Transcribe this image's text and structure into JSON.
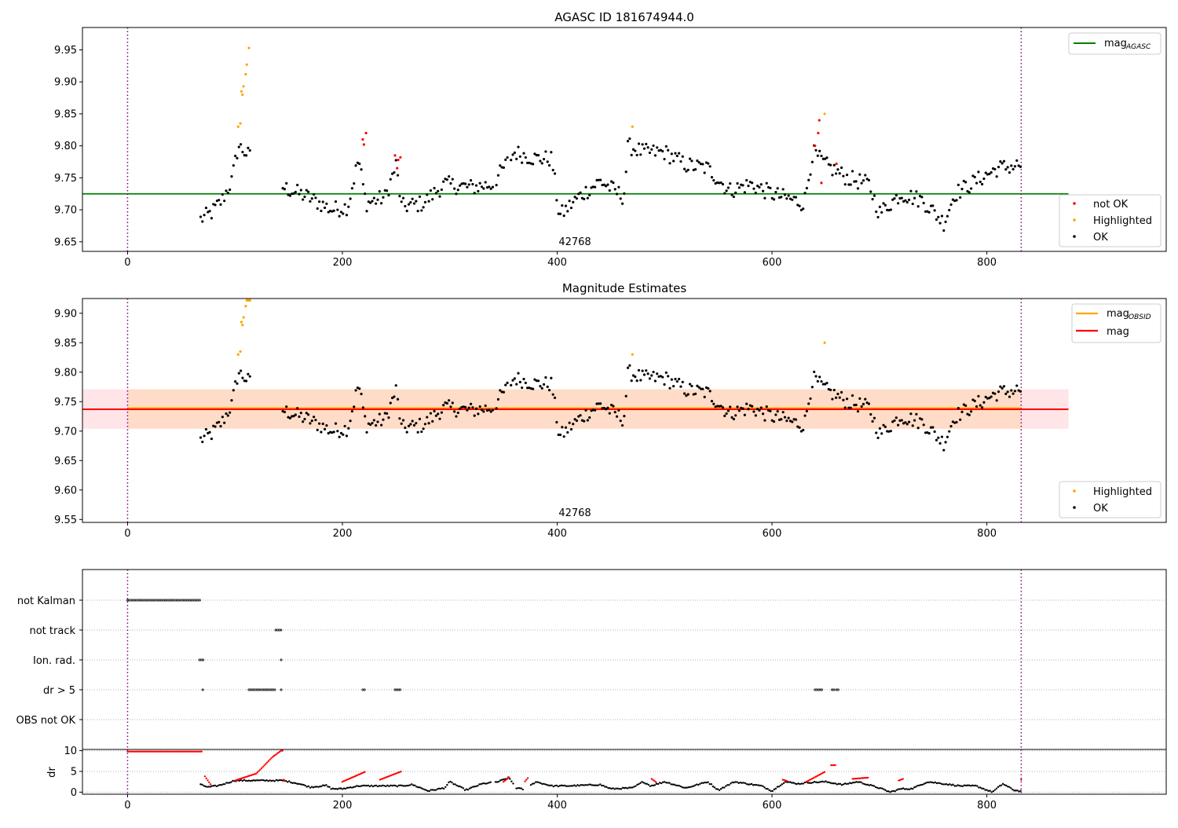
{
  "colors": {
    "ok": "#000000",
    "not_ok": "#ff0000",
    "highlighted": "#ffa500",
    "mag_agasc": "#008000",
    "mag_obsid": "#ffa500",
    "mag": "#ff0000",
    "obs_boundary": "#800080",
    "band_outer": "#ffe4e8",
    "band_inner": "#ffdcc8",
    "grid": "#b0b0b0"
  },
  "chart_data": [
    {
      "type": "scatter",
      "title": "AGASC ID 181674944.0",
      "xlim": [
        -42,
        967
      ],
      "ylim": [
        9.635,
        9.985
      ],
      "xticks": [
        "0",
        "200",
        "400",
        "600",
        "800"
      ],
      "yticks": [
        "9.65",
        "9.70",
        "9.75",
        "9.80",
        "9.85",
        "9.90",
        "9.95"
      ],
      "obsid_label": "42768",
      "obs_boundaries_x": [
        0,
        832
      ],
      "mag_agasc": 9.725,
      "mag_line_x": [
        -42,
        876
      ],
      "legend_top": {
        "position": "upper right",
        "entries": [
          {
            "label": "mag",
            "subscript": "AGASC",
            "color": "#008000"
          }
        ]
      },
      "legend_bottom": {
        "position": "lower right",
        "entries": [
          {
            "label": "not OK",
            "color": "#ff0000"
          },
          {
            "label": "Highlighted",
            "color": "#ffa500"
          },
          {
            "label": "OK",
            "color": "#000000"
          }
        ]
      },
      "series": [
        {
          "name": "not OK",
          "color": "#ff0000",
          "points": [
            [
              219,
              9.81
            ],
            [
              220,
              9.802
            ],
            [
              222,
              9.82
            ],
            [
              249,
              9.785
            ],
            [
              251,
              9.765
            ],
            [
              252,
              9.778
            ],
            [
              254,
              9.782
            ],
            [
              640,
              9.8
            ],
            [
              643,
              9.82
            ],
            [
              644,
              9.84
            ],
            [
              646,
              9.742
            ],
            [
              660,
              9.772
            ]
          ]
        },
        {
          "name": "Highlighted",
          "color": "#ffa500",
          "points": [
            [
              103,
              9.83
            ],
            [
              105,
              9.835
            ],
            [
              106,
              9.885
            ],
            [
              107,
              9.88
            ],
            [
              108,
              9.893
            ],
            [
              110,
              9.912
            ],
            [
              111,
              9.927
            ],
            [
              113,
              9.953
            ],
            [
              470,
              9.83
            ],
            [
              649,
              9.85
            ]
          ]
        },
        {
          "name": "OK",
          "color": "#000000",
          "trend": [
            [
              68,
              9.685
            ],
            [
              78,
              9.695
            ],
            [
              88,
              9.715
            ],
            [
              97,
              9.745
            ],
            [
              103,
              9.8
            ],
            [
              145,
              9.735
            ],
            [
              168,
              9.72
            ],
            [
              190,
              9.7
            ],
            [
              205,
              9.705
            ],
            [
              215,
              9.78
            ],
            [
              222,
              9.71
            ],
            [
              240,
              9.72
            ],
            [
              250,
              9.77
            ],
            [
              255,
              9.705
            ],
            [
              275,
              9.71
            ],
            [
              295,
              9.74
            ],
            [
              320,
              9.735
            ],
            [
              340,
              9.74
            ],
            [
              360,
              9.79
            ],
            [
              380,
              9.78
            ],
            [
              395,
              9.78
            ],
            [
              402,
              9.69
            ],
            [
              420,
              9.72
            ],
            [
              440,
              9.745
            ],
            [
              462,
              9.72
            ],
            [
              466,
              9.8
            ],
            [
              480,
              9.79
            ],
            [
              500,
              9.79
            ],
            [
              520,
              9.77
            ],
            [
              540,
              9.765
            ],
            [
              560,
              9.73
            ],
            [
              580,
              9.74
            ],
            [
              600,
              9.725
            ],
            [
              620,
              9.715
            ],
            [
              630,
              9.71
            ],
            [
              638,
              9.79
            ],
            [
              650,
              9.77
            ],
            [
              670,
              9.75
            ],
            [
              690,
              9.74
            ],
            [
              700,
              9.695
            ],
            [
              720,
              9.725
            ],
            [
              740,
              9.715
            ],
            [
              760,
              9.68
            ],
            [
              770,
              9.725
            ],
            [
              790,
              9.745
            ],
            [
              810,
              9.765
            ],
            [
              832,
              9.77
            ]
          ],
          "spread": 0.013,
          "step": 1.7,
          "gaps": [
            [
              114,
              143
            ],
            [
              340,
              342
            ],
            [
              355,
              356
            ]
          ]
        }
      ]
    },
    {
      "type": "scatter",
      "title": "Magnitude Estimates",
      "xlim": [
        -42,
        967
      ],
      "ylim": [
        9.545,
        9.925
      ],
      "xticks": [
        "0",
        "200",
        "400",
        "600",
        "800"
      ],
      "yticks": [
        "9.55",
        "9.60",
        "9.65",
        "9.70",
        "9.75",
        "9.80",
        "9.85",
        "9.90"
      ],
      "obsid_label": "42768",
      "obs_boundaries_x": [
        0,
        832
      ],
      "mag": 9.737,
      "mag_obsid": 9.738,
      "band_outer": [
        9.704,
        9.771
      ],
      "band_inner_x": [
        0,
        832
      ],
      "mag_line_x": [
        -42,
        876
      ],
      "legend_top": {
        "position": "upper right",
        "entries": [
          {
            "label": "mag",
            "subscript": "OBSID",
            "color": "#ffa500"
          },
          {
            "label": "mag",
            "color": "#ff0000"
          }
        ]
      },
      "legend_bottom": {
        "position": "lower right",
        "entries": [
          {
            "label": "Highlighted",
            "color": "#ffa500"
          },
          {
            "label": "OK",
            "color": "#000000"
          }
        ]
      },
      "series": [
        {
          "name": "Highlighted",
          "color": "#ffa500",
          "points": [
            [
              103,
              9.83
            ],
            [
              105,
              9.835
            ],
            [
              106,
              9.885
            ],
            [
              107,
              9.88
            ],
            [
              108,
              9.893
            ],
            [
              110,
              9.912
            ],
            [
              111,
              9.922
            ],
            [
              112,
              9.922
            ],
            [
              113,
              9.922
            ],
            [
              114,
              9.922
            ],
            [
              470,
              9.83
            ],
            [
              649,
              9.85
            ]
          ]
        },
        {
          "name": "OK",
          "color": "#000000",
          "trend": "same as top panel"
        }
      ]
    },
    {
      "type": "scatter",
      "title": "",
      "xlim": [
        -42,
        967
      ],
      "obs_boundaries_x": [
        0,
        832
      ],
      "flag_rows": [
        "not Kalman",
        "not track",
        "Ion. rad.",
        "dr > 5",
        "OBS not OK"
      ],
      "flags": {
        "not Kalman": [
          [
            0,
            68
          ]
        ],
        "not track": [
          [
            138,
            143
          ]
        ],
        "Ion. rad.": [
          [
            67,
            71
          ],
          [
            143,
            144
          ]
        ],
        "dr > 5": [
          [
            70,
            71
          ],
          [
            113,
            138
          ],
          [
            143,
            144
          ],
          [
            219,
            222
          ],
          [
            249,
            254
          ],
          [
            640,
            647
          ],
          [
            656,
            658
          ],
          [
            660,
            662
          ]
        ],
        "OBS not OK": []
      }
    },
    {
      "type": "scatter",
      "ylabel": "dr",
      "xlim": [
        -42,
        967
      ],
      "ylim": [
        -0.5,
        10.3
      ],
      "xticks": [
        "0",
        "200",
        "400",
        "600",
        "800"
      ],
      "yticks": [
        "0",
        "5",
        "10"
      ],
      "obs_boundaries_x": [
        0,
        832
      ],
      "series": [
        {
          "name": "not OK",
          "color": "#ff0000",
          "segments": [
            [
              [
                0,
                9.8
              ],
              [
                70,
                9.8
              ]
            ],
            [
              [
                72,
                3.8
              ],
              [
                78,
                1.6
              ]
            ],
            [
              [
                100,
                2.8
              ],
              [
                120,
                4.5
              ],
              [
                135,
                8.5
              ],
              [
                143,
                10
              ]
            ],
            [
              [
                143,
                10
              ],
              [
                145,
                10
              ]
            ],
            [
              [
                145,
                3
              ],
              [
                147,
                2.5
              ]
            ],
            [
              [
                200,
                2.5
              ],
              [
                222,
                5
              ]
            ],
            [
              [
                235,
                3
              ],
              [
                255,
                5
              ]
            ],
            [
              [
                350,
                2.5
              ],
              [
                356,
                3.7
              ]
            ],
            [
              [
                370,
                2.6
              ],
              [
                373,
                3.5
              ]
            ],
            [
              [
                488,
                3.2
              ],
              [
                492,
                2.4
              ]
            ],
            [
              [
                610,
                3
              ],
              [
                615,
                2.6
              ]
            ],
            [
              [
                632,
                2.5
              ],
              [
                650,
                5
              ]
            ],
            [
              [
                655,
                6.5
              ],
              [
                660,
                6.5
              ]
            ],
            [
              [
                675,
                3.2
              ],
              [
                690,
                3.5
              ]
            ],
            [
              [
                718,
                2.8
              ],
              [
                722,
                3.2
              ]
            ],
            [
              [
                832,
                3
              ],
              [
                833,
                3.5
              ]
            ]
          ]
        },
        {
          "name": "OK",
          "color": "#000000",
          "curve": [
            [
              68,
              1.8
            ],
            [
              75,
              1.2
            ],
            [
              85,
              1.6
            ],
            [
              100,
              2.8
            ],
            [
              145,
              2.8
            ],
            [
              160,
              2.0
            ],
            [
              170,
              1.2
            ],
            [
              185,
              1.6
            ],
            [
              190,
              0.8
            ],
            [
              200,
              0.8
            ],
            [
              215,
              1.5
            ],
            [
              255,
              1.5
            ],
            [
              265,
              1.8
            ],
            [
              280,
              0.3
            ],
            [
              295,
              1.0
            ],
            [
              300,
              2.5
            ],
            [
              315,
              0.5
            ],
            [
              330,
              2.0
            ],
            [
              345,
              2.5
            ],
            [
              355,
              3.5
            ],
            [
              362,
              1.0
            ],
            [
              370,
              0.6
            ],
            [
              380,
              2.5
            ],
            [
              395,
              1.5
            ],
            [
              410,
              1.5
            ],
            [
              440,
              1.8
            ],
            [
              450,
              0.8
            ],
            [
              470,
              1.0
            ],
            [
              480,
              2.5
            ],
            [
              487,
              1.5
            ],
            [
              500,
              2.5
            ],
            [
              520,
              1.0
            ],
            [
              540,
              2.5
            ],
            [
              550,
              0.5
            ],
            [
              565,
              2.5
            ],
            [
              590,
              1.5
            ],
            [
              600,
              0.3
            ],
            [
              612,
              2.5
            ],
            [
              625,
              2.0
            ],
            [
              632,
              2.3
            ],
            [
              650,
              2.5
            ],
            [
              665,
              1.8
            ],
            [
              680,
              2.5
            ],
            [
              700,
              1.0
            ],
            [
              710,
              0.0
            ],
            [
              720,
              0.8
            ],
            [
              730,
              0.8
            ],
            [
              745,
              2.5
            ],
            [
              760,
              2.0
            ],
            [
              775,
              1.5
            ],
            [
              790,
              1.5
            ],
            [
              805,
              0.0
            ],
            [
              815,
              2.0
            ],
            [
              825,
              0.5
            ],
            [
              832,
              0.2
            ]
          ],
          "gaps": [
            [
              339,
              342
            ],
            [
              359,
              362
            ],
            [
              368,
              375
            ]
          ]
        }
      ]
    }
  ]
}
